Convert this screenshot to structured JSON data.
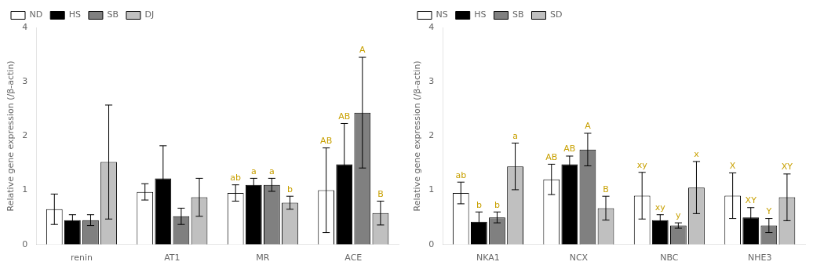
{
  "chart_data": [
    {
      "type": "bar",
      "ylabel": "Relative gene expression (/β-actin)",
      "categories": [
        "renin",
        "AT1",
        "MR",
        "ACE"
      ],
      "series": [
        {
          "name": "ND",
          "color": "#ffffff",
          "values": [
            0.65,
            0.97,
            0.95,
            1.0
          ],
          "errors": [
            0.28,
            0.15,
            0.15,
            0.78
          ]
        },
        {
          "name": "HS",
          "color": "#000000",
          "values": [
            0.45,
            1.22,
            1.1,
            1.48
          ],
          "errors": [
            0.1,
            0.6,
            0.12,
            0.75
          ]
        },
        {
          "name": "SB",
          "color": "#808080",
          "values": [
            0.45,
            0.52,
            1.1,
            2.43
          ],
          "errors": [
            0.1,
            0.15,
            0.12,
            1.02
          ]
        },
        {
          "name": "DJ",
          "color": "#c0c0c0",
          "values": [
            1.52,
            0.87,
            0.77,
            0.58
          ],
          "errors": [
            1.05,
            0.35,
            0.12,
            0.22
          ]
        }
      ],
      "annotations": [
        {
          "category": "MR",
          "series": "ND",
          "text": "ab",
          "color": "#c8a000"
        },
        {
          "category": "MR",
          "series": "HS",
          "text": "a",
          "color": "#c8a000"
        },
        {
          "category": "MR",
          "series": "SB",
          "text": "a",
          "color": "#c8a000"
        },
        {
          "category": "MR",
          "series": "DJ",
          "text": "b",
          "color": "#c8a000"
        },
        {
          "category": "ACE",
          "series": "ND",
          "text": "AB",
          "color": "#c8a000"
        },
        {
          "category": "ACE",
          "series": "HS",
          "text": "AB",
          "color": "#c8a000"
        },
        {
          "category": "ACE",
          "series": "SB",
          "text": "A",
          "color": "#c8a000"
        },
        {
          "category": "ACE",
          "series": "DJ",
          "text": "B",
          "color": "#c8a000"
        }
      ],
      "ylim": [
        0,
        4
      ],
      "yticks": [
        0,
        1,
        2,
        3,
        4
      ],
      "grid": false,
      "legend": "upper left"
    },
    {
      "type": "bar",
      "ylabel": "Relative gene expression (/β-actin)",
      "categories": [
        "NKA1",
        "NCX",
        "NBC",
        "NHE3"
      ],
      "series": [
        {
          "name": "NS",
          "color": "#ffffff",
          "values": [
            0.95,
            1.2,
            0.9,
            0.9
          ],
          "errors": [
            0.2,
            0.28,
            0.43,
            0.42
          ]
        },
        {
          "name": "HS",
          "color": "#000000",
          "values": [
            0.42,
            1.48,
            0.45,
            0.5
          ],
          "errors": [
            0.18,
            0.15,
            0.1,
            0.18
          ]
        },
        {
          "name": "SB",
          "color": "#808080",
          "values": [
            0.5,
            1.75,
            0.35,
            0.35
          ],
          "errors": [
            0.1,
            0.3,
            0.05,
            0.13
          ]
        },
        {
          "name": "SD",
          "color": "#c0c0c0",
          "values": [
            1.44,
            0.67,
            1.05,
            0.87
          ],
          "errors": [
            0.43,
            0.22,
            0.48,
            0.43
          ]
        }
      ],
      "annotations": [
        {
          "category": "NKA1",
          "series": "NS",
          "text": "ab",
          "color": "#c8a000"
        },
        {
          "category": "NKA1",
          "series": "HS",
          "text": "b",
          "color": "#c8a000"
        },
        {
          "category": "NKA1",
          "series": "SB",
          "text": "b",
          "color": "#c8a000"
        },
        {
          "category": "NKA1",
          "series": "SD",
          "text": "a",
          "color": "#c8a000"
        },
        {
          "category": "NCX",
          "series": "NS",
          "text": "AB",
          "color": "#c8a000"
        },
        {
          "category": "NCX",
          "series": "HS",
          "text": "AB",
          "color": "#c8a000"
        },
        {
          "category": "NCX",
          "series": "SB",
          "text": "A",
          "color": "#c8a000"
        },
        {
          "category": "NCX",
          "series": "SD",
          "text": "B",
          "color": "#c8a000"
        },
        {
          "category": "NBC",
          "series": "NS",
          "text": "xy",
          "color": "#c8a000"
        },
        {
          "category": "NBC",
          "series": "HS",
          "text": "xy",
          "color": "#c8a000"
        },
        {
          "category": "NBC",
          "series": "SB",
          "text": "y",
          "color": "#c8a000"
        },
        {
          "category": "NBC",
          "series": "SD",
          "text": "x",
          "color": "#c8a000"
        },
        {
          "category": "NHE3",
          "series": "NS",
          "text": "X",
          "color": "#c8a000"
        },
        {
          "category": "NHE3",
          "series": "HS",
          "text": "XY",
          "color": "#c8a000"
        },
        {
          "category": "NHE3",
          "series": "SB",
          "text": "Y",
          "color": "#c8a000"
        },
        {
          "category": "NHE3",
          "series": "SD",
          "text": "XY",
          "color": "#c8a000"
        }
      ],
      "ylim": [
        0,
        4
      ],
      "yticks": [
        0,
        1,
        2,
        3,
        4
      ],
      "grid": false,
      "legend": "upper left"
    }
  ]
}
